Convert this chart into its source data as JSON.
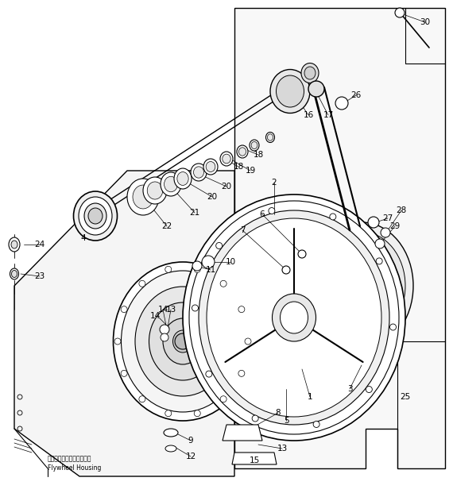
{
  "bg_color": "#ffffff",
  "line_color": "#000000",
  "text_color": "#000000",
  "figsize": [
    5.7,
    6.21
  ],
  "dpi": 100,
  "label_flywheel_jp": "フライホイールハウジング",
  "label_flywheel_en": "Flywheel Housing",
  "font_size": 7.0
}
